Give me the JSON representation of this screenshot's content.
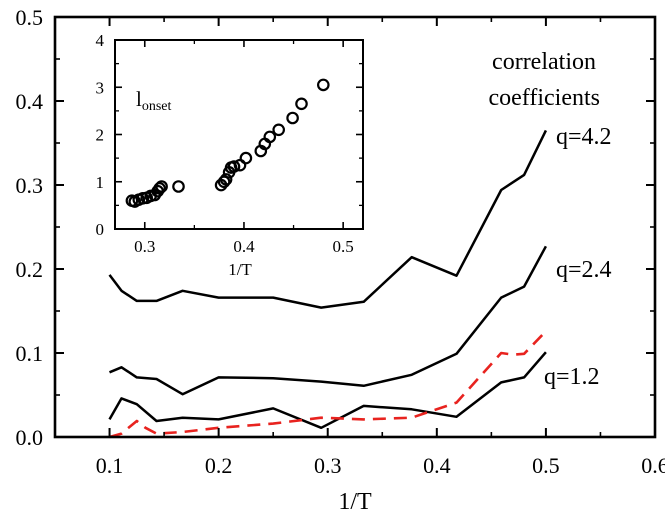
{
  "chart_data": [
    {
      "type": "line",
      "xlabel": "1/T",
      "ylabel": "",
      "xlim": [
        0.05,
        0.6
      ],
      "ylim": [
        0.0,
        0.5
      ],
      "xticks": [
        0.1,
        0.2,
        0.3,
        0.4,
        0.5,
        0.6
      ],
      "xtick_labels": [
        "0.1",
        "0.2",
        "0.3",
        "0.4",
        "0.5",
        "0.6"
      ],
      "yticks": [
        0.0,
        0.1,
        0.2,
        0.3,
        0.4,
        0.5
      ],
      "ytick_labels": [
        "0.0",
        "0.1",
        "0.2",
        "0.3",
        "0.4",
        "0.5"
      ],
      "title_lines": [
        "correlation",
        "coefficients"
      ],
      "series": [
        {
          "name": "q=4.2",
          "color": "#000000",
          "dashed": false,
          "x": [
            0.1,
            0.111,
            0.125,
            0.143,
            0.167,
            0.2,
            0.25,
            0.294,
            0.333,
            0.377,
            0.418,
            0.459,
            0.48,
            0.5
          ],
          "y": [
            0.193,
            0.174,
            0.162,
            0.162,
            0.174,
            0.166,
            0.166,
            0.154,
            0.161,
            0.214,
            0.192,
            0.294,
            0.312,
            0.365
          ]
        },
        {
          "name": "q=2.4",
          "color": "#000000",
          "dashed": false,
          "x": [
            0.1,
            0.111,
            0.125,
            0.143,
            0.167,
            0.2,
            0.25,
            0.294,
            0.333,
            0.377,
            0.418,
            0.459,
            0.48,
            0.5
          ],
          "y": [
            0.077,
            0.083,
            0.071,
            0.069,
            0.051,
            0.071,
            0.07,
            0.066,
            0.061,
            0.074,
            0.099,
            0.166,
            0.179,
            0.227
          ]
        },
        {
          "name": "q=1.2",
          "color": "#000000",
          "dashed": false,
          "x": [
            0.1,
            0.111,
            0.125,
            0.143,
            0.167,
            0.2,
            0.25,
            0.294,
            0.333,
            0.377,
            0.418,
            0.459,
            0.48,
            0.5
          ],
          "y": [
            0.021,
            0.046,
            0.039,
            0.019,
            0.023,
            0.021,
            0.034,
            0.011,
            0.037,
            0.033,
            0.024,
            0.065,
            0.071,
            0.101
          ]
        },
        {
          "name": "dashed",
          "color": "#e8231f",
          "dashed": true,
          "x": [
            0.1,
            0.111,
            0.125,
            0.133,
            0.143,
            0.167,
            0.2,
            0.25,
            0.294,
            0.333,
            0.377,
            0.418,
            0.459,
            0.47,
            0.48,
            0.5
          ],
          "y": [
            0.0,
            0.004,
            0.019,
            0.011,
            0.004,
            0.006,
            0.011,
            0.016,
            0.023,
            0.021,
            0.023,
            0.041,
            0.1,
            0.098,
            0.099,
            0.126
          ]
        }
      ],
      "series_labels": [
        "q=4.2",
        "q=2.4",
        "q=1.2"
      ]
    },
    {
      "type": "scatter",
      "inset": true,
      "title": "l",
      "title_subscript": "onset",
      "xlabel": "1/T",
      "xlim": [
        0.27,
        0.52
      ],
      "ylim": [
        0,
        4
      ],
      "xticks": [
        0.3,
        0.4,
        0.5
      ],
      "xtick_labels": [
        "0.3",
        "0.4",
        "0.5"
      ],
      "yticks": [
        0,
        1,
        2,
        3,
        4
      ],
      "ytick_labels": [
        "0",
        "1",
        "2",
        "3",
        "4"
      ],
      "x": [
        0.287,
        0.29,
        0.294,
        0.298,
        0.302,
        0.306,
        0.31,
        0.313,
        0.315,
        0.317,
        0.334,
        0.377,
        0.38,
        0.382,
        0.385,
        0.387,
        0.39,
        0.396,
        0.402,
        0.417,
        0.421,
        0.426,
        0.435,
        0.449,
        0.458,
        0.48
      ],
      "y": [
        0.6,
        0.58,
        0.62,
        0.65,
        0.66,
        0.7,
        0.72,
        0.8,
        0.86,
        0.9,
        0.9,
        0.93,
        1.0,
        1.05,
        1.2,
        1.3,
        1.32,
        1.35,
        1.5,
        1.65,
        1.8,
        1.95,
        2.1,
        2.35,
        2.65,
        3.05
      ]
    }
  ]
}
